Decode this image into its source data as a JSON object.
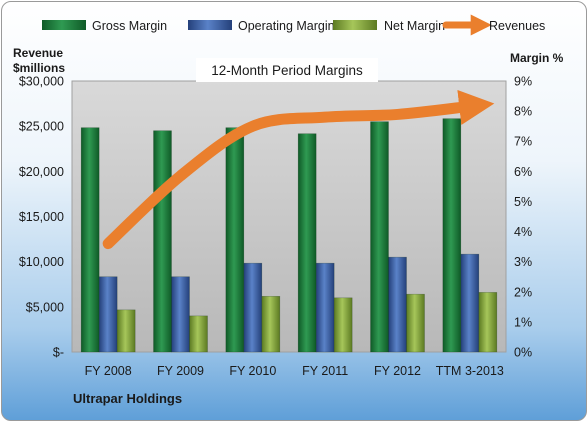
{
  "chart_data": {
    "type": "bar",
    "title": "12-Month Period Margins",
    "company": "Ultrapar Holdings",
    "categories": [
      "FY 2008",
      "FY 2009",
      "FY 2010",
      "FY 2011",
      "FY 2012",
      "TTM 3-2013"
    ],
    "left_axis": {
      "label_line1": "Revenue",
      "label_line2": "$millions",
      "ylim": [
        0,
        30000
      ],
      "tick_labels": [
        "$-",
        "$5,000",
        "$10,000",
        "$15,000",
        "$20,000",
        "$25,000",
        "$30,000"
      ]
    },
    "right_axis": {
      "label": "Margin %",
      "ylim": [
        0,
        9
      ],
      "tick_labels": [
        "0%",
        "1%",
        "2%",
        "3%",
        "4%",
        "5%",
        "6%",
        "7%",
        "8%",
        "9%"
      ]
    },
    "series": [
      {
        "name": "Gross Margin",
        "axis": "right",
        "color": "#1e7a3c",
        "values": [
          7.45,
          7.35,
          7.45,
          7.25,
          7.65,
          7.75
        ]
      },
      {
        "name": "Operating Margin",
        "axis": "right",
        "color": "#3d62a8",
        "values": [
          2.5,
          2.5,
          2.95,
          2.95,
          3.15,
          3.25
        ]
      },
      {
        "name": "Net Margin",
        "axis": "right",
        "color": "#8aad3e",
        "values": [
          1.4,
          1.2,
          1.85,
          1.8,
          1.92,
          1.98
        ]
      },
      {
        "name": "Revenues",
        "axis": "left",
        "color": "#ea7f2d",
        "values": [
          12000,
          19500,
          25000,
          26000,
          26300,
          27200
        ]
      }
    ],
    "grid": false,
    "legend_position": "top"
  }
}
